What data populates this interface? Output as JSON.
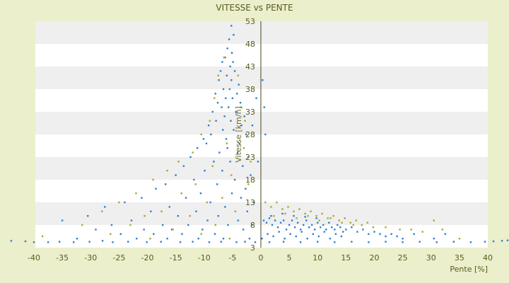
{
  "chart_data": {
    "type": "scatter",
    "title": "VITESSE vs PENTE",
    "xlabel": "Pente [%]",
    "ylabel": "Vitesse [km/h]",
    "xlim": [
      -40,
      42
    ],
    "ylim": [
      3,
      53
    ],
    "xticks": [
      -40,
      -35,
      -30,
      -25,
      -20,
      -15,
      -10,
      -5,
      0,
      5,
      10,
      15,
      20,
      25,
      30,
      35,
      40
    ],
    "yticks": [
      3,
      8,
      13,
      18,
      23,
      28,
      33,
      38,
      43,
      48,
      53
    ],
    "grid": "horizontal bands",
    "legend": "none",
    "colors": {
      "background": "#ecefcc",
      "band_light": "#ffffff",
      "band_dark": "#efefef",
      "series_blue": "#2f7fd0",
      "series_olive": "#a8a82c",
      "text": "#5a5a1e"
    },
    "series": [
      {
        "color": "blue",
        "points": [
          [
            -5.2,
            52
          ],
          [
            -4.8,
            50
          ],
          [
            -5.6,
            49
          ],
          [
            -5.9,
            47
          ],
          [
            -5.1,
            46
          ],
          [
            -6.3,
            45
          ],
          [
            -4.9,
            44
          ],
          [
            -6.8,
            44
          ],
          [
            -5.4,
            43
          ],
          [
            -7.1,
            42
          ],
          [
            -4.6,
            42
          ],
          [
            -6.0,
            41
          ],
          [
            -5.2,
            40
          ],
          [
            -7.4,
            40
          ],
          [
            -3.9,
            39
          ],
          [
            -6.6,
            38
          ],
          [
            -5.5,
            38
          ],
          [
            -8.0,
            37
          ],
          [
            -4.2,
            37
          ],
          [
            -6.2,
            36
          ],
          [
            -5.0,
            36
          ],
          [
            -7.6,
            35
          ],
          [
            -3.6,
            35
          ],
          [
            -6.9,
            34
          ],
          [
            -5.7,
            34
          ],
          [
            -8.5,
            33
          ],
          [
            -4.4,
            33
          ],
          [
            -6.4,
            32
          ],
          [
            -2.9,
            32
          ],
          [
            -7.9,
            31
          ],
          [
            -5.3,
            31
          ],
          [
            -9.2,
            30
          ],
          [
            -3.4,
            30
          ],
          [
            -6.7,
            29
          ],
          [
            -4.8,
            29
          ],
          [
            -8.8,
            28
          ],
          [
            -2.6,
            28
          ],
          [
            -10.1,
            27
          ],
          [
            -6.1,
            27
          ],
          [
            -3.8,
            26
          ],
          [
            -9.6,
            26
          ],
          [
            -5.9,
            25
          ],
          [
            -11.2,
            25
          ],
          [
            -4.1,
            24
          ],
          [
            -7.3,
            24
          ],
          [
            -12.4,
            23
          ],
          [
            -2.2,
            23
          ],
          [
            -8.3,
            22
          ],
          [
            -5.4,
            22
          ],
          [
            -13.6,
            21
          ],
          [
            -3.2,
            21
          ],
          [
            -9.9,
            20
          ],
          [
            -6.8,
            20
          ],
          [
            -15.0,
            19
          ],
          [
            -1.8,
            19
          ],
          [
            -11.8,
            18
          ],
          [
            -4.6,
            18
          ],
          [
            -16.8,
            17
          ],
          [
            -7.7,
            17
          ],
          [
            -2.7,
            16
          ],
          [
            -18.5,
            16
          ],
          [
            -10.6,
            15
          ],
          [
            -5.1,
            15
          ],
          [
            -21.0,
            14
          ],
          [
            -13.2,
            14
          ],
          [
            -3.5,
            14
          ],
          [
            -1.2,
            13
          ],
          [
            -8.9,
            13
          ],
          [
            -24.0,
            13
          ],
          [
            -16.1,
            12
          ],
          [
            -6.3,
            12
          ],
          [
            -27.5,
            12
          ],
          [
            -11.4,
            11
          ],
          [
            -2.4,
            11
          ],
          [
            -19.4,
            11
          ],
          [
            -30.5,
            10
          ],
          [
            -14.6,
            10
          ],
          [
            -7.5,
            10
          ],
          [
            -4.0,
            9
          ],
          [
            -22.8,
            9
          ],
          [
            -35.0,
            9
          ],
          [
            -9.4,
            9
          ],
          [
            -17.3,
            8
          ],
          [
            -12.8,
            8
          ],
          [
            -26.3,
            8
          ],
          [
            -5.8,
            8
          ],
          [
            -1.6,
            8
          ],
          [
            -20.6,
            7
          ],
          [
            -29.1,
            7
          ],
          [
            -15.7,
            7
          ],
          [
            -10.3,
            7
          ],
          [
            -3.1,
            7
          ],
          [
            -24.7,
            6
          ],
          [
            -18.9,
            6
          ],
          [
            -13.9,
            6
          ],
          [
            -8.1,
            6
          ],
          [
            -32.4,
            5
          ],
          [
            -21.9,
            5
          ],
          [
            -16.5,
            5
          ],
          [
            -11.0,
            5
          ],
          [
            -6.6,
            5
          ],
          [
            -2.0,
            5
          ],
          [
            -27.9,
            4.5
          ],
          [
            -40.0,
            4.2
          ],
          [
            -37.5,
            4.2
          ],
          [
            -35.5,
            4.3
          ],
          [
            -33.0,
            4.2
          ],
          [
            -30.2,
            4.3
          ],
          [
            -26.1,
            4.2
          ],
          [
            -23.4,
            4.3
          ],
          [
            -20.1,
            4.2
          ],
          [
            -17.6,
            4.3
          ],
          [
            -14.2,
            4.2
          ],
          [
            -12.0,
            4.3
          ],
          [
            -9.1,
            4.2
          ],
          [
            -7.0,
            4.3
          ],
          [
            -4.3,
            4.2
          ],
          [
            -2.8,
            4.3
          ],
          [
            -1.0,
            4.2
          ],
          [
            -44.0,
            4.5
          ],
          [
            -41.5,
            4.4
          ],
          [
            -0.5,
            22
          ],
          [
            0.3,
            40
          ],
          [
            -0.8,
            36
          ],
          [
            0.6,
            34
          ],
          [
            -1.5,
            30
          ],
          [
            0.8,
            28
          ],
          [
            0.5,
            9
          ],
          [
            1.0,
            8.5
          ],
          [
            1.5,
            9.5
          ],
          [
            2.0,
            8
          ],
          [
            2.5,
            9
          ],
          [
            3.0,
            7.5
          ],
          [
            3.5,
            8.5
          ],
          [
            4.0,
            9
          ],
          [
            4.5,
            7
          ],
          [
            5.0,
            8
          ],
          [
            5.5,
            9
          ],
          [
            6.0,
            7.5
          ],
          [
            6.5,
            8.5
          ],
          [
            7.0,
            7
          ],
          [
            7.5,
            8
          ],
          [
            8.0,
            9
          ],
          [
            8.5,
            7.5
          ],
          [
            9.0,
            8
          ],
          [
            9.5,
            7
          ],
          [
            10.0,
            8.5
          ],
          [
            10.5,
            7.5
          ],
          [
            11.0,
            8
          ],
          [
            11.5,
            7
          ],
          [
            12.0,
            8.5
          ],
          [
            12.5,
            7.5
          ],
          [
            13.0,
            7
          ],
          [
            13.5,
            8
          ],
          [
            14.0,
            7.5
          ],
          [
            14.5,
            6.5
          ],
          [
            15.0,
            7
          ],
          [
            16.0,
            7.5
          ],
          [
            17.0,
            6.5
          ],
          [
            18.0,
            7
          ],
          [
            19.0,
            6
          ],
          [
            20.0,
            6.5
          ],
          [
            21.0,
            6
          ],
          [
            22.0,
            5.5
          ],
          [
            23.0,
            6
          ],
          [
            24.0,
            5.5
          ],
          [
            25.0,
            5
          ],
          [
            1.2,
            6
          ],
          [
            2.2,
            5.5
          ],
          [
            3.2,
            6.5
          ],
          [
            4.2,
            5
          ],
          [
            5.2,
            6
          ],
          [
            6.2,
            5.5
          ],
          [
            7.2,
            6.5
          ],
          [
            8.2,
            5
          ],
          [
            9.2,
            6
          ],
          [
            10.2,
            5.5
          ],
          [
            11.2,
            6.5
          ],
          [
            12.2,
            5
          ],
          [
            13.2,
            6
          ],
          [
            14.2,
            5.5
          ],
          [
            1.8,
            10
          ],
          [
            3.8,
            10.5
          ],
          [
            5.8,
            10
          ],
          [
            7.8,
            9.8
          ],
          [
            9.8,
            9.5
          ],
          [
            0.2,
            5
          ],
          [
            1.5,
            4.2
          ],
          [
            4.0,
            4.3
          ],
          [
            7.0,
            4.2
          ],
          [
            10.0,
            4.3
          ],
          [
            13.0,
            4.2
          ],
          [
            16.0,
            4.3
          ],
          [
            19.0,
            4.2
          ],
          [
            22.0,
            4.3
          ],
          [
            25.0,
            4.2
          ],
          [
            28.0,
            4.3
          ],
          [
            31.0,
            4.2
          ],
          [
            34.0,
            4.3
          ],
          [
            37.0,
            4.2
          ],
          [
            39.5,
            4.3
          ],
          [
            41.0,
            4.4
          ],
          [
            42.5,
            4.5
          ],
          [
            44.0,
            4.6
          ],
          [
            30.5,
            5
          ],
          [
            27.0,
            6
          ],
          [
            32.5,
            6
          ]
        ]
      },
      {
        "color": "olive",
        "points": [
          [
            -6.5,
            45
          ],
          [
            -7.5,
            41
          ],
          [
            -4.0,
            41
          ],
          [
            -8.2,
            36
          ],
          [
            -3.5,
            34
          ],
          [
            -9.0,
            31
          ],
          [
            -2.8,
            31
          ],
          [
            -10.5,
            28
          ],
          [
            -6.0,
            26
          ],
          [
            -12.0,
            24
          ],
          [
            -3.0,
            25
          ],
          [
            -14.5,
            22
          ],
          [
            -1.8,
            22
          ],
          [
            -8.5,
            21
          ],
          [
            -16.5,
            20
          ],
          [
            -5.2,
            19
          ],
          [
            -19.0,
            18
          ],
          [
            -11.5,
            17
          ],
          [
            -2.2,
            17
          ],
          [
            -22.0,
            15
          ],
          [
            -14.0,
            15
          ],
          [
            -6.8,
            14
          ],
          [
            -25.0,
            13
          ],
          [
            -9.5,
            13
          ],
          [
            -28.0,
            11
          ],
          [
            -17.5,
            11
          ],
          [
            -4.5,
            11
          ],
          [
            -20.5,
            10
          ],
          [
            -12.5,
            10
          ],
          [
            -31.5,
            8
          ],
          [
            -23.0,
            8
          ],
          [
            -8.0,
            8
          ],
          [
            -15.5,
            7
          ],
          [
            -26.5,
            6
          ],
          [
            -10.5,
            6
          ],
          [
            -19.5,
            5
          ],
          [
            -5.5,
            5
          ],
          [
            -38.5,
            5.5
          ],
          [
            0.8,
            13
          ],
          [
            1.8,
            12
          ],
          [
            2.8,
            13
          ],
          [
            3.8,
            11.5
          ],
          [
            4.8,
            12
          ],
          [
            5.8,
            11
          ],
          [
            6.8,
            11.5
          ],
          [
            7.8,
            10.5
          ],
          [
            8.8,
            11
          ],
          [
            9.8,
            10
          ],
          [
            10.8,
            10.5
          ],
          [
            11.8,
            9.5
          ],
          [
            12.8,
            10
          ],
          [
            13.8,
            9
          ],
          [
            14.8,
            9.5
          ],
          [
            15.8,
            8.5
          ],
          [
            16.8,
            9
          ],
          [
            17.8,
            8
          ],
          [
            18.8,
            8.5
          ],
          [
            19.8,
            7.5
          ],
          [
            2.3,
            10
          ],
          [
            4.3,
            10.5
          ],
          [
            6.3,
            9.5
          ],
          [
            8.3,
            10
          ],
          [
            10.3,
            9
          ],
          [
            12.3,
            9.5
          ],
          [
            14.3,
            8.5
          ],
          [
            16.3,
            8
          ],
          [
            22.0,
            7.5
          ],
          [
            24.5,
            7
          ],
          [
            26.5,
            7
          ],
          [
            28.5,
            6.5
          ],
          [
            30.5,
            9
          ],
          [
            32.0,
            7
          ],
          [
            35.0,
            5
          ]
        ]
      }
    ]
  }
}
